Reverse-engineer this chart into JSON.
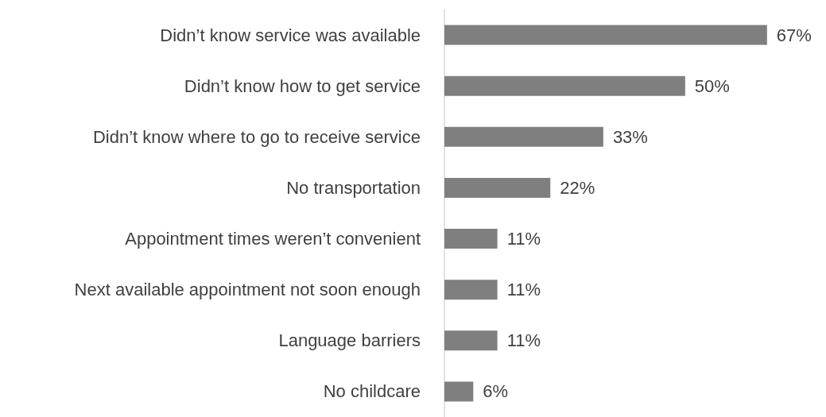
{
  "chart_data": {
    "type": "bar",
    "orientation": "horizontal",
    "categories": [
      "Didn’t know service was available",
      "Didn’t know how to get service",
      "Didn’t know where to go to receive service",
      "No transportation",
      "Appointment times weren’t convenient",
      "Next available appointment not soon enough",
      "Language barriers",
      "No childcare"
    ],
    "values": [
      67,
      50,
      33,
      22,
      11,
      11,
      11,
      6
    ],
    "value_labels": [
      "67%",
      "50%",
      "33%",
      "22%",
      "11%",
      "11%",
      "11%",
      "6%"
    ],
    "color": "#7f7f7f"
  }
}
